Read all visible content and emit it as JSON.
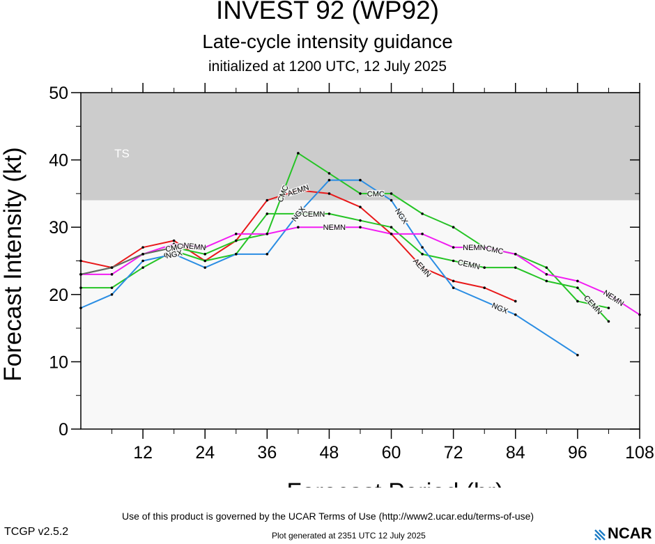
{
  "chart_data": {
    "type": "line",
    "title": "INVEST 92 (WP92)",
    "subtitle": "Late-cycle intensity guidance",
    "subtitle2": "initialized at 1200 UTC, 12 July 2025",
    "xlabel": "Forecast Period (hr)",
    "ylabel": "Forecast Intensity (kt)",
    "xlim": [
      0,
      108
    ],
    "ylim": [
      0,
      50
    ],
    "xticks": [
      12,
      24,
      36,
      48,
      60,
      72,
      84,
      96,
      108
    ],
    "yticks": [
      0,
      10,
      20,
      30,
      40,
      50
    ],
    "bands": [
      {
        "label": "TS",
        "from": 34,
        "to": 50,
        "color": "#cccccc"
      },
      {
        "label": "",
        "from": 0,
        "to": 34,
        "color": "#f8f8f8"
      }
    ],
    "series": [
      {
        "name": "AEMN",
        "color": "#e8191a",
        "labels": [
          42,
          66
        ],
        "x": [
          0,
          6,
          12,
          18,
          24,
          30,
          36,
          42,
          48,
          54,
          60,
          66,
          72,
          78,
          84
        ],
        "y": [
          25,
          24,
          27,
          28,
          25,
          28,
          34,
          35.5,
          35,
          33,
          29,
          24,
          22,
          21,
          19
        ]
      },
      {
        "name": "CEMN",
        "color": "#25c425",
        "labels": [
          18,
          45,
          75,
          99
        ],
        "x": [
          0,
          6,
          12,
          18,
          24,
          30,
          36,
          42,
          48,
          54,
          60,
          66,
          72,
          78,
          84,
          90,
          96,
          102
        ],
        "y": [
          21,
          21,
          24,
          26.5,
          25,
          26,
          32,
          32,
          32,
          31,
          30,
          26,
          25,
          24,
          24,
          22,
          21,
          16
        ]
      },
      {
        "name": "CMC",
        "color": "#25c425",
        "labels": [
          18,
          39,
          57,
          80
        ],
        "x": [
          0,
          6,
          12,
          18,
          24,
          30,
          36,
          42,
          48,
          54,
          60,
          66,
          72,
          78,
          84,
          90,
          96,
          102
        ],
        "y": [
          23,
          24,
          26,
          27,
          26,
          28,
          29,
          41,
          38,
          35,
          35,
          32,
          30,
          27,
          26,
          24,
          19,
          18
        ]
      },
      {
        "name": "NGX",
        "color": "#2a8de3",
        "labels": [
          18,
          42,
          62,
          81
        ],
        "x": [
          0,
          6,
          12,
          18,
          24,
          30,
          36,
          42,
          48,
          54,
          60,
          66,
          72,
          84,
          96
        ],
        "y": [
          18,
          20,
          25,
          26,
          24,
          26,
          26,
          32,
          37,
          37,
          34,
          27,
          21,
          17,
          11
        ]
      },
      {
        "name": "NEMN",
        "color": "#f21cf2",
        "labels": [
          22,
          49,
          76,
          103
        ],
        "x": [
          0,
          6,
          12,
          18,
          24,
          30,
          36,
          42,
          48,
          54,
          60,
          66,
          72,
          78,
          84,
          90,
          96,
          102,
          108
        ],
        "y": [
          23,
          23,
          26,
          27.5,
          27,
          29,
          29,
          30,
          30,
          30,
          29,
          29,
          27,
          27,
          26,
          23,
          22,
          20,
          17
        ]
      },
      {
        "name": "",
        "color": "#666666",
        "labels": [],
        "x": [
          0,
          6,
          12,
          18
        ],
        "y": [
          23,
          24,
          26,
          27
        ]
      }
    ]
  },
  "footer": {
    "terms": "Use of this product is governed by the UCAR Terms of Use (http://www2.ucar.edu/terms-of-use)",
    "version": "TCGP v2.5.2",
    "generated": "Plot generated at 2351 UTC   12 July 2025",
    "logo": "NCAR"
  }
}
